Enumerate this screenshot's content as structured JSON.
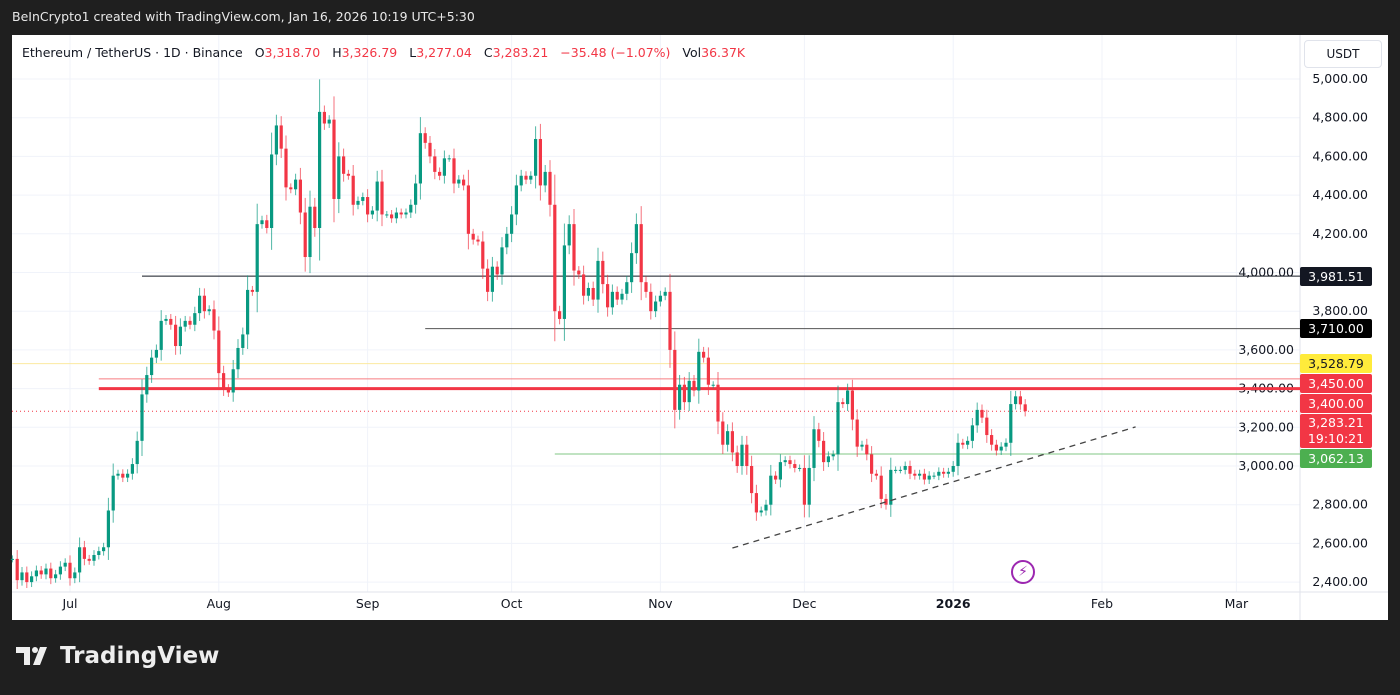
{
  "header": {
    "caption": "BeInCrypto1 created with TradingView.com, Jan 16, 2026 10:19 UTC+5:30"
  },
  "legend": {
    "symbol": "Ethereum / TetherUS · 1D · Binance",
    "open_label": "O",
    "open": "3,318.70",
    "high_label": "H",
    "high": "3,326.79",
    "low_label": "L",
    "low": "3,277.04",
    "close_label": "C",
    "close": "3,283.21",
    "change": "−35.48 (−1.07%)",
    "vol_label": "Vol",
    "vol": "36.37K"
  },
  "price_axis": {
    "unit": "USDT"
  },
  "footer": {
    "brand": "TradingView"
  },
  "colors": {
    "up": "#089981",
    "down": "#f23645",
    "accent_purple": "#9c27b0"
  },
  "chart_data": {
    "type": "candlestick",
    "title": "",
    "y_ticks": [
      "5,000.00",
      "4,800.00",
      "4,600.00",
      "4,400.00",
      "4,200.00",
      "4,000.00",
      "3,800.00",
      "3,600.00",
      "3,400.00",
      "3,200.00",
      "3,000.00",
      "2,800.00",
      "2,600.00",
      "2,400.00"
    ],
    "y_tick_values": [
      5000,
      4800,
      4600,
      4400,
      4200,
      4000,
      3800,
      3600,
      3400,
      3200,
      3000,
      2800,
      2600,
      2400
    ],
    "x_ticks": [
      {
        "label": "Jul",
        "date": "2025-07-01"
      },
      {
        "label": "Aug",
        "date": "2025-08-01"
      },
      {
        "label": "Sep",
        "date": "2025-09-01"
      },
      {
        "label": "Oct",
        "date": "2025-10-01"
      },
      {
        "label": "Nov",
        "date": "2025-11-01"
      },
      {
        "label": "Dec",
        "date": "2025-12-01"
      },
      {
        "label": "2026",
        "date": "2026-01-01",
        "bold": true
      },
      {
        "label": "Feb",
        "date": "2026-02-01"
      },
      {
        "label": "Mar",
        "date": "2026-03-01"
      }
    ],
    "ylim": [
      2400,
      5000
    ],
    "grid": true,
    "daily_closes": [
      {
        "month": "2025-06",
        "first_day": 19,
        "close": [
          2520,
          2410,
          2450,
          2400,
          2430,
          2460,
          2440,
          2470,
          2420,
          2440,
          2480,
          2500
        ]
      },
      {
        "month": "2025-07",
        "first_day": 1,
        "close": [
          2420,
          2450,
          2580,
          2520,
          2510,
          2540,
          2560,
          2580,
          2770,
          2950,
          2960,
          2940,
          2960,
          3010,
          3130,
          3370,
          3470,
          3560,
          3600,
          3750,
          3760,
          3730,
          3620,
          3720,
          3750,
          3730,
          3790,
          3880,
          3800,
          3810,
          3700
        ]
      },
      {
        "month": "2025-08",
        "first_day": 1,
        "close": [
          3480,
          3400,
          3380,
          3500,
          3610,
          3680,
          3910,
          3900,
          4250,
          4270,
          4230,
          4610,
          4760,
          4640,
          4440,
          4430,
          4480,
          4310,
          4080,
          4340,
          4230,
          4830,
          4770,
          4790,
          4380,
          4600,
          4510,
          4500,
          4350,
          4370,
          4390
        ]
      },
      {
        "month": "2025-09",
        "first_day": 1,
        "close": [
          4300,
          4320,
          4470,
          4300,
          4300,
          4280,
          4310,
          4300,
          4310,
          4350,
          4460,
          4720,
          4670,
          4600,
          4520,
          4500,
          4590,
          4590,
          4460,
          4480,
          4450,
          4200,
          4170,
          4160,
          4020,
          3900,
          4030,
          3990,
          4130,
          4200
        ]
      },
      {
        "month": "2025-10",
        "first_day": 1,
        "close": [
          4300,
          4450,
          4500,
          4480,
          4500,
          4690,
          4450,
          4520,
          4350,
          3800,
          3760,
          4140,
          4250,
          4010,
          3990,
          3880,
          3920,
          3860,
          4060,
          3940,
          3820,
          3900,
          3860,
          3890,
          3950,
          4100,
          4250,
          3950,
          3900,
          3800,
          3850
        ]
      },
      {
        "month": "2025-11",
        "first_day": 1,
        "close": [
          3880,
          3900,
          3600,
          3290,
          3420,
          3330,
          3440,
          3390,
          3590,
          3560,
          3420,
          3420,
          3230,
          3110,
          3180,
          3070,
          3000,
          3110,
          3000,
          2860,
          2760,
          2770,
          2800,
          2950,
          2930,
          3020,
          3030,
          3010,
          2990,
          2990
        ]
      },
      {
        "month": "2025-12",
        "first_day": 1,
        "close": [
          2800,
          2990,
          3190,
          3130,
          3020,
          3050,
          3060,
          3330,
          3320,
          3390,
          3240,
          3100,
          3110,
          3060,
          2960,
          2950,
          2830,
          2800,
          2980,
          2980,
          2980,
          3000,
          2960,
          2950,
          2960,
          2930,
          2950,
          2950,
          2970,
          2960,
          2970
        ]
      },
      {
        "month": "2026-01",
        "first_day": 1,
        "close": [
          3000,
          3120,
          3110,
          3130,
          3210,
          3290,
          3250,
          3160,
          3110,
          3080,
          3100,
          3120,
          3320,
          3360,
          3318.7,
          3283.21
        ]
      }
    ],
    "horizontal_levels": [
      {
        "price": 3981.51,
        "label": "3,981.51",
        "from": "2025-07-16",
        "color": "#131722",
        "text": "#ffffff",
        "width": 1
      },
      {
        "price": 3710.0,
        "label": "3,710.00",
        "from": "2025-09-13",
        "color": "#555555",
        "text": "#ffffff",
        "bg": "#000000",
        "width": 1
      },
      {
        "price": 3528.79,
        "label": "3,528.79",
        "from": "2025-06-19",
        "color": "#fbe9a0",
        "text": "#131722",
        "bg": "#ffeb3b",
        "width": 1
      },
      {
        "price": 3450.0,
        "label": "3,450.00",
        "from": "2025-07-07",
        "color": "#f77c80",
        "text": "#ffffff",
        "bg": "#f23645",
        "width": 1
      },
      {
        "price": 3400.0,
        "label": "3,400.00",
        "from": "2025-07-07",
        "color": "#f23645",
        "text": "#ffffff",
        "bg": "#f23645",
        "width": 3
      },
      {
        "price": 3062.13,
        "label": "3,062.13",
        "from": "2025-10-10",
        "color": "#81c784",
        "text": "#ffffff",
        "bg": "#4caf50",
        "width": 1
      }
    ],
    "last_price": {
      "price": 3283.21,
      "label": "3,283.21",
      "countdown": "19:10:21",
      "color": "#f23645"
    },
    "trendline": {
      "from": {
        "date": "2025-11-16",
        "price": 2576
      },
      "to": {
        "date": "2026-02-08",
        "price": 3202
      },
      "style": "dashed"
    }
  }
}
